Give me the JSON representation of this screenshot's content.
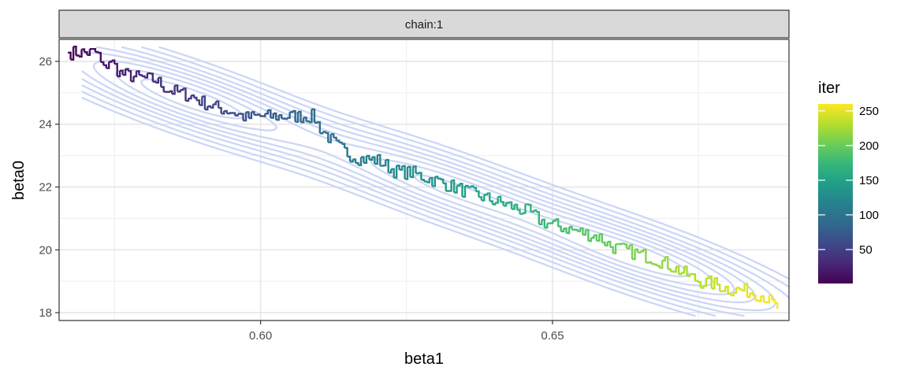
{
  "chart_data": {
    "type": "line",
    "facet": "chain:1",
    "xlabel": "beta1",
    "ylabel": "beta0",
    "xlim": [
      0.5655,
      0.6905
    ],
    "ylim": [
      17.75,
      26.7
    ],
    "x_ticks": [
      0.6,
      0.65
    ],
    "x_tick_labels": [
      "0.60",
      "0.65"
    ],
    "x_minor_ticks": [
      0.575,
      0.625,
      0.675
    ],
    "y_ticks": [
      18,
      20,
      22,
      24,
      26
    ],
    "y_tick_labels": [
      "18",
      "20",
      "22",
      "24",
      "26"
    ],
    "y_minor_ticks": [
      19,
      21,
      23,
      25
    ],
    "grid": true,
    "legend": {
      "title": "iter",
      "position": "right",
      "labels": [
        50,
        100,
        150,
        200,
        250
      ],
      "range": [
        1,
        260
      ],
      "colormap": "viridis"
    },
    "contour_color": "#c8d3f5",
    "contours": {
      "modes": [
        {
          "x": 0.5875,
          "y": 24.85,
          "weight": 1.0
        },
        {
          "x": 0.631,
          "y": 22.05,
          "weight": 0.85
        },
        {
          "x": 0.665,
          "y": 19.75,
          "weight": 1.0
        }
      ],
      "rho": -0.86,
      "sd_x": 0.0145,
      "sd_y": 1.05,
      "levels": [
        0.05,
        0.1,
        0.18,
        0.28,
        0.4,
        0.54,
        0.7,
        0.86
      ]
    },
    "trace": {
      "x_start": 0.567,
      "x_end": 0.6885,
      "n_iter": 260,
      "anchors": [
        [
          0.567,
          26.28
        ],
        [
          0.572,
          26.28
        ],
        [
          0.573,
          25.7
        ],
        [
          0.574,
          26.05
        ],
        [
          0.576,
          25.6
        ],
        [
          0.58,
          25.45
        ],
        [
          0.582,
          25.4
        ],
        [
          0.584,
          25.1
        ],
        [
          0.588,
          24.9
        ],
        [
          0.59,
          24.7
        ],
        [
          0.592,
          24.55
        ],
        [
          0.595,
          24.4
        ],
        [
          0.5975,
          24.2
        ],
        [
          0.5995,
          24.25
        ],
        [
          0.6,
          24.25
        ],
        [
          0.609,
          24.25
        ],
        [
          0.61,
          23.9
        ],
        [
          0.613,
          23.3
        ],
        [
          0.615,
          23.05
        ],
        [
          0.617,
          22.9
        ],
        [
          0.62,
          22.85
        ],
        [
          0.623,
          22.5
        ],
        [
          0.626,
          22.45
        ],
        [
          0.628,
          22.3
        ],
        [
          0.63,
          22.2
        ],
        [
          0.633,
          22.0
        ],
        [
          0.636,
          21.8
        ],
        [
          0.64,
          21.55
        ],
        [
          0.642,
          21.45
        ],
        [
          0.644,
          21.3
        ],
        [
          0.646,
          21.2
        ],
        [
          0.648,
          20.9
        ],
        [
          0.65,
          20.8
        ],
        [
          0.654,
          20.6
        ],
        [
          0.658,
          20.4
        ],
        [
          0.66,
          20.1
        ],
        [
          0.663,
          19.95
        ],
        [
          0.666,
          19.8
        ],
        [
          0.669,
          19.6
        ],
        [
          0.672,
          19.3
        ],
        [
          0.675,
          19.0
        ],
        [
          0.678,
          18.9
        ],
        [
          0.68,
          18.75
        ],
        [
          0.683,
          18.7
        ],
        [
          0.686,
          18.55
        ],
        [
          0.688,
          18.2
        ],
        [
          0.6885,
          18.15
        ]
      ]
    }
  }
}
